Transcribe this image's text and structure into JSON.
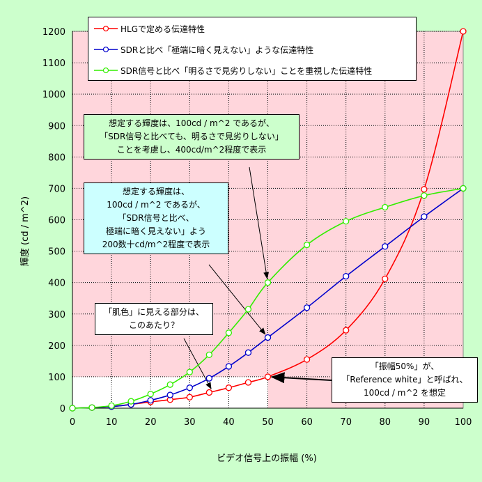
{
  "chart_data": {
    "type": "line",
    "ylabel": "輝度 (cd / m^2)",
    "xlabel": "ビデオ信号上の振幅 (%)",
    "xlim": [
      0,
      100
    ],
    "ylim": [
      0,
      1200
    ],
    "x_ticks": [
      0,
      10,
      20,
      30,
      40,
      50,
      60,
      70,
      80,
      90,
      100
    ],
    "y_ticks": [
      0,
      100,
      200,
      300,
      400,
      500,
      600,
      700,
      800,
      900,
      1000,
      1100,
      1200
    ],
    "grid": true,
    "legend_position": "top",
    "series": [
      {
        "name": "HLGで定める伝達特性",
        "color": "#ff0000",
        "x": [
          0,
          5,
          10,
          15,
          20,
          25,
          30,
          35,
          40,
          45,
          50,
          60,
          70,
          80,
          90,
          100
        ],
        "y": [
          0,
          2,
          5,
          12,
          20,
          27,
          35,
          50,
          65,
          82,
          100,
          155,
          248,
          412,
          697,
          1200
        ]
      },
      {
        "name": "SDRと比べ「極端に暗く見えない」ような伝達特性",
        "color": "#0000cc",
        "x": [
          0,
          5,
          10,
          15,
          20,
          25,
          30,
          35,
          40,
          45,
          50,
          60,
          70,
          80,
          90,
          100
        ],
        "y": [
          0,
          2,
          5,
          12,
          25,
          42,
          65,
          95,
          133,
          177,
          225,
          320,
          420,
          515,
          610,
          700
        ]
      },
      {
        "name": "SDR信号と比べ「明るさで見劣りしない」ことを重視した伝達特性",
        "color": "#33ee00",
        "x": [
          0,
          5,
          10,
          15,
          20,
          25,
          30,
          35,
          40,
          45,
          50,
          60,
          70,
          80,
          90,
          100
        ],
        "y": [
          0,
          2,
          8,
          22,
          45,
          75,
          115,
          170,
          240,
          315,
          400,
          520,
          595,
          640,
          677,
          700
        ]
      }
    ],
    "annotations": [
      {
        "id": "green",
        "lines": [
          "想定する輝度は、100cd / m^2 であるが、",
          "「SDR信号と比べても、明るさで見劣りしない」",
          "ことを考慮し、400cd/m^2程度で表示"
        ],
        "bg": "#ccffcc",
        "target": [
          50,
          400
        ]
      },
      {
        "id": "blue",
        "lines": [
          "想定する輝度は、",
          "100cd / m^2 であるが、",
          "「SDR信号と比べ、",
          "極端に暗く見えない」よう",
          "200数十cd/m^2程度で表示"
        ],
        "bg": "#ccffff",
        "target": [
          50,
          225
        ]
      },
      {
        "id": "skin",
        "lines": [
          "「肌色」に見える部分は、",
          "このあたり？"
        ],
        "bg": "#ffffff",
        "target": [
          36,
          50
        ]
      },
      {
        "id": "ref",
        "lines": [
          "「振幅50%」が、",
          "「Reference white」と呼ばれ、",
          "100cd / m^2 を想定"
        ],
        "bg": "#ffffff",
        "target": [
          50,
          100
        ]
      }
    ],
    "colors": {
      "plot_background": "#ffd6dc",
      "highlight_region": "#ffffff",
      "figure_background": "#ccffcc"
    }
  }
}
